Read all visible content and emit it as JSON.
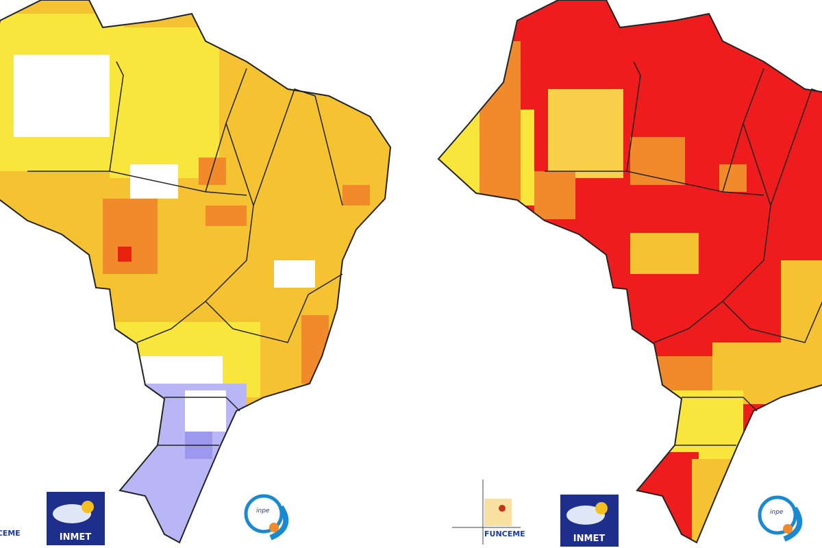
{
  "left_map": {
    "logos": {
      "funceme": "FUNCEME",
      "inmet": "INMET",
      "inpe": "inpe"
    }
  },
  "right_map": {
    "logos": {
      "funceme": "FUNCEME",
      "inmet": "INMET",
      "inpe": "inpe"
    }
  }
}
